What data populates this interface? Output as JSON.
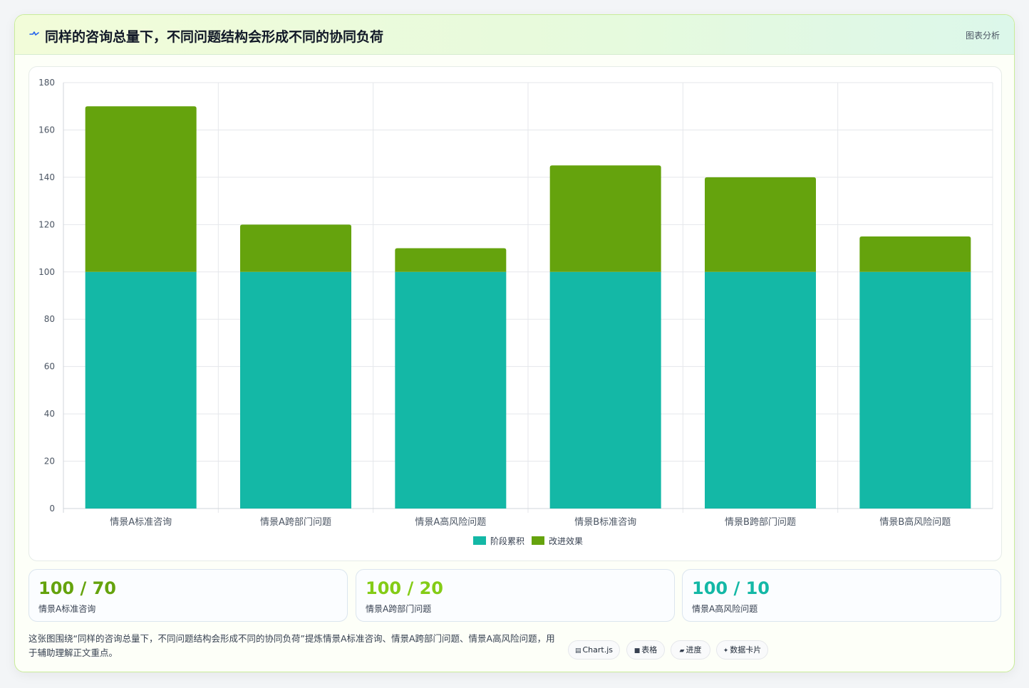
{
  "header": {
    "title": "同样的咨询总量下，不同问题结构会形成不同的协同负荷",
    "tag": "图表分析",
    "icon": "pulse-icon"
  },
  "chart_data": {
    "type": "bar",
    "stacked": true,
    "categories": [
      "情景A标准咨询",
      "情景A跨部门问题",
      "情景A高风险问题",
      "情景B标准咨询",
      "情景B跨部门问题",
      "情景B高风险问题"
    ],
    "series": [
      {
        "name": "阶段累积",
        "values": [
          100,
          100,
          100,
          100,
          100,
          100
        ],
        "color": "#14b8a6"
      },
      {
        "name": "改进效果",
        "values": [
          70,
          20,
          10,
          45,
          40,
          15
        ],
        "color": "#65a30d"
      }
    ],
    "ylim": [
      0,
      180
    ],
    "yticks": [
      0,
      20,
      40,
      60,
      80,
      100,
      120,
      140,
      160,
      180
    ],
    "grid": true,
    "legend_position": "bottom"
  },
  "stats": [
    {
      "value": "100 / 70",
      "label": "情景A标准咨询",
      "color": "#65a30d"
    },
    {
      "value": "100 / 20",
      "label": "情景A跨部门问题",
      "color": "#84cc16"
    },
    {
      "value": "100 / 10",
      "label": "情景A高风险问题",
      "color": "#14b8a6"
    }
  ],
  "footer": {
    "note": "这张图围绕“同样的咨询总量下，不同问题结构会形成不同的协同负荷”提炼情景A标准咨询、情景A跨部门问题、情景A高风险问题，用于辅助理解正文重点。",
    "chips": [
      {
        "glyph": "▤",
        "label": "Chart.js"
      },
      {
        "glyph": "■",
        "label": "表格"
      },
      {
        "glyph": "▰",
        "label": "进度"
      },
      {
        "glyph": "✦",
        "label": "数据卡片"
      }
    ]
  }
}
